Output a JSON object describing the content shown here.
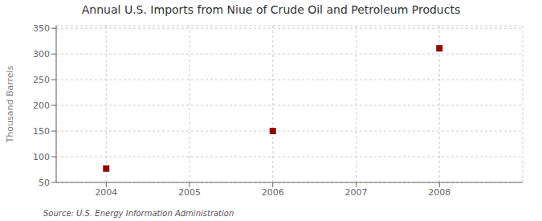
{
  "chart_data": {
    "type": "scatter",
    "title": "Annual U.S. Imports from Niue of Crude Oil and Petroleum Products",
    "ylabel": "Thousand Barrels",
    "source": "Source: U.S. Energy Information Administration",
    "x": [
      2004,
      2006,
      2008
    ],
    "values": [
      77,
      150,
      311
    ],
    "color": "#990000",
    "marker": "square",
    "xlim": [
      2003.4,
      2009.0
    ],
    "xticks": [
      2004,
      2005,
      2006,
      2007,
      2008
    ],
    "ylim": [
      50,
      355
    ],
    "yticks": [
      50,
      100,
      150,
      200,
      250,
      300,
      350
    ],
    "grid": true
  }
}
